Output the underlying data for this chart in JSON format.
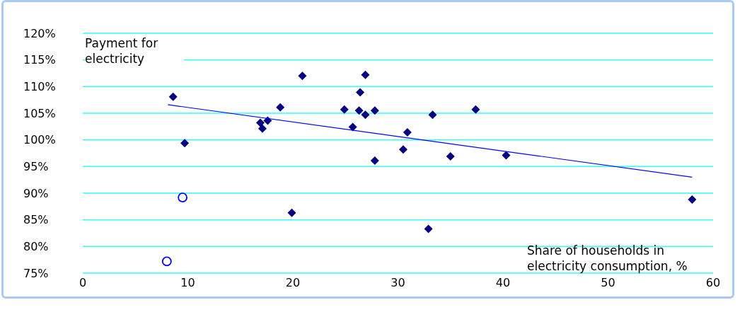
{
  "chart_data": {
    "type": "scatter",
    "xlabel": "Share of households in electricity consumption, %",
    "ylabel": "Payment for electricity",
    "xlim": [
      0,
      60
    ],
    "xticks": [
      0,
      10,
      20,
      30,
      40,
      50,
      60
    ],
    "ylim": [
      75,
      120
    ],
    "yticks": [
      {
        "value": 75,
        "label": "75%"
      },
      {
        "value": 80,
        "label": "80%"
      },
      {
        "value": 85,
        "label": "85%"
      },
      {
        "value": 90,
        "label": "90%"
      },
      {
        "value": 95,
        "label": "95%"
      },
      {
        "value": 100,
        "label": "100%"
      },
      {
        "value": 105,
        "label": "105%"
      },
      {
        "value": 110,
        "label": "110%"
      },
      {
        "value": 115,
        "label": "115%"
      },
      {
        "value": 120,
        "label": "120%"
      }
    ],
    "grid": "y",
    "legend": false,
    "series": [
      {
        "marker": "diamond",
        "color": "#000080",
        "x": [
          8.6,
          9.7,
          16.9,
          17.1,
          17.6,
          18.8,
          19.9,
          20.9,
          24.9,
          25.7,
          26.3,
          26.4,
          26.9,
          26.9,
          27.8,
          27.8,
          30.5,
          30.9,
          32.9,
          33.3,
          35.0,
          37.4,
          40.3,
          58.0
        ],
        "values": [
          108.1,
          99.4,
          103.2,
          102.1,
          103.6,
          106.1,
          86.3,
          112.0,
          105.7,
          102.4,
          105.5,
          108.9,
          112.2,
          104.7,
          105.5,
          96.1,
          98.2,
          101.4,
          83.3,
          104.7,
          96.9,
          105.7,
          97.1,
          88.8
        ]
      },
      {
        "marker": "circle",
        "color": "#0000ff",
        "x": [
          9.5,
          8.0
        ],
        "values": [
          89.2,
          77.2
        ]
      },
      {
        "type": "line",
        "marker": "none",
        "color": "#0000ff",
        "x": [
          8.1,
          58.0
        ],
        "values": [
          106.6,
          93.0
        ]
      }
    ]
  }
}
